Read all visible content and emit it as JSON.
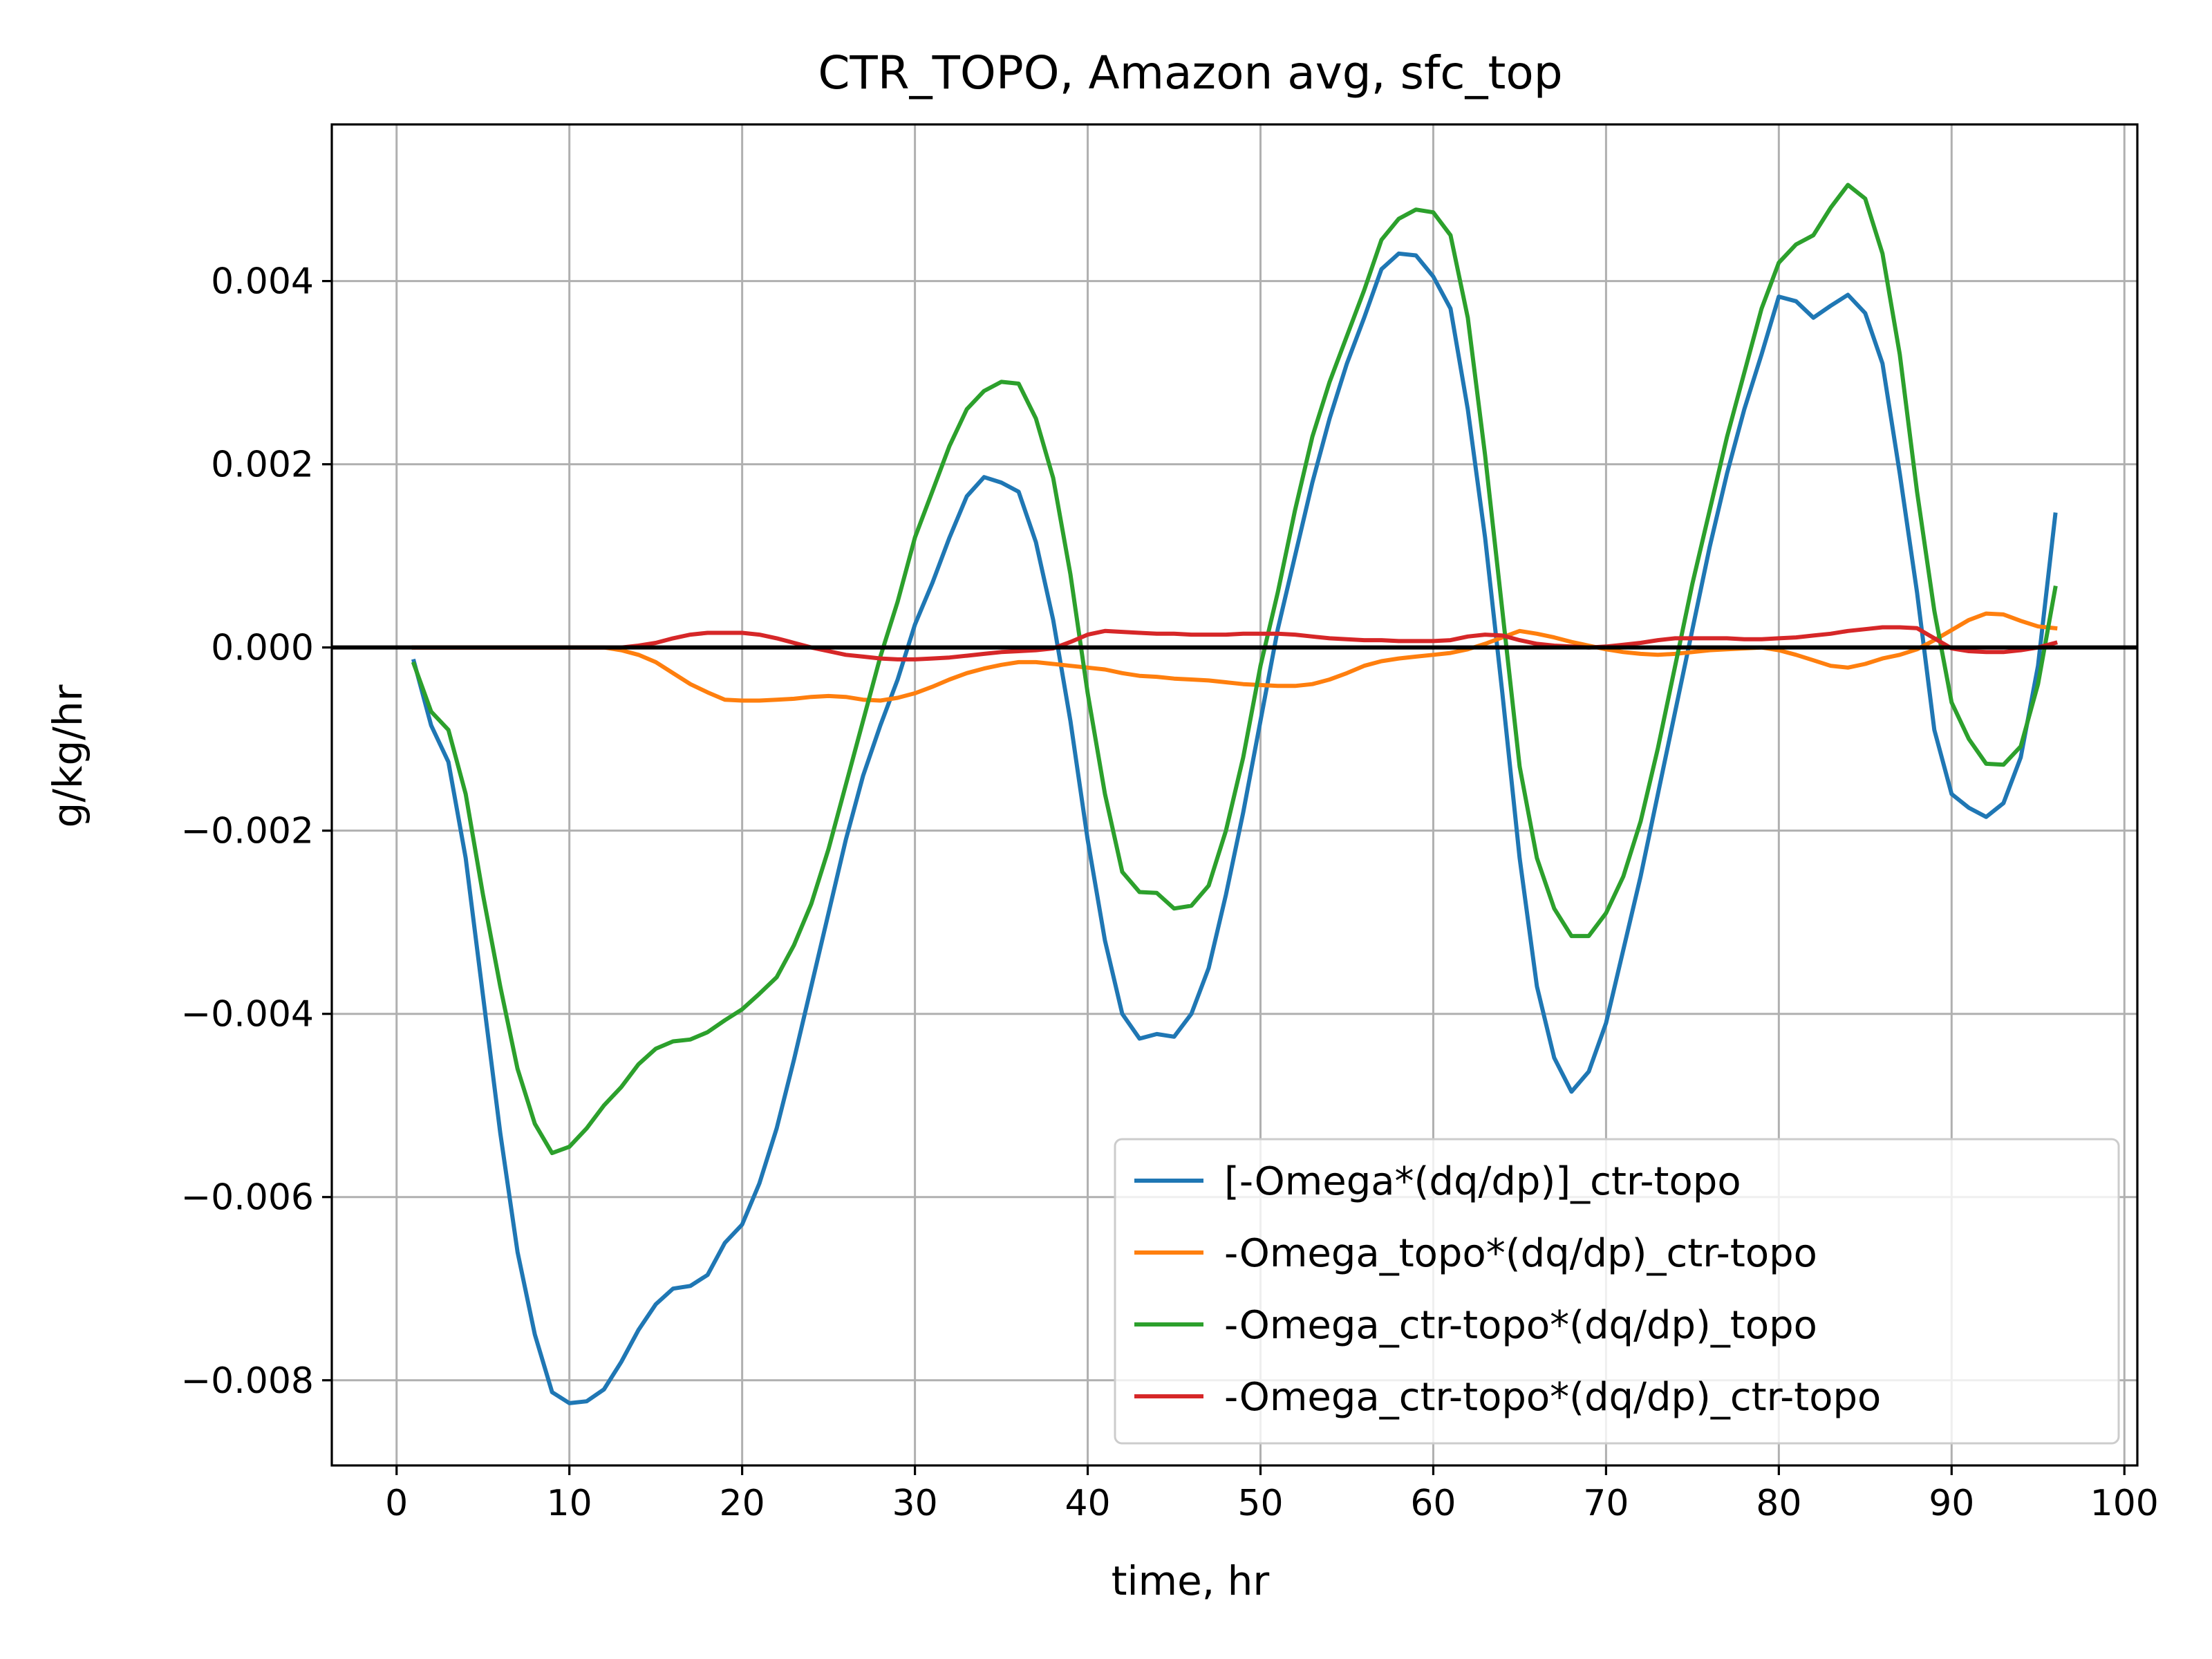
{
  "chart_data": {
    "type": "line",
    "title": "CTR_TOPO, Amazon avg, sfc_top",
    "xlabel": "time, hr",
    "ylabel": "g/kg/hr",
    "xlim": [
      -3.75,
      100.75
    ],
    "ylim": [
      -0.00893,
      0.00571
    ],
    "xticks": [
      0,
      10,
      20,
      30,
      40,
      50,
      60,
      70,
      80,
      90,
      100
    ],
    "xtick_labels": [
      "0",
      "10",
      "20",
      "30",
      "40",
      "50",
      "60",
      "70",
      "80",
      "90",
      "100"
    ],
    "yticks": [
      -0.008,
      -0.006,
      -0.004,
      -0.002,
      0.0,
      0.002,
      0.004
    ],
    "ytick_labels": [
      "−0.008",
      "−0.006",
      "−0.004",
      "−0.002",
      "0.000",
      "0.002",
      "0.004"
    ],
    "grid": true,
    "legend_position": "lower-right",
    "reference_line": {
      "y": 0.0,
      "color": "#000000"
    },
    "x": [
      1,
      2,
      3,
      4,
      5,
      6,
      7,
      8,
      9,
      10,
      11,
      12,
      13,
      14,
      15,
      16,
      17,
      18,
      19,
      20,
      21,
      22,
      23,
      24,
      25,
      26,
      27,
      28,
      29,
      30,
      31,
      32,
      33,
      34,
      35,
      36,
      37,
      38,
      39,
      40,
      41,
      42,
      43,
      44,
      45,
      46,
      47,
      48,
      49,
      50,
      51,
      52,
      53,
      54,
      55,
      56,
      57,
      58,
      59,
      60,
      61,
      62,
      63,
      64,
      65,
      66,
      67,
      68,
      69,
      70,
      71,
      72,
      73,
      74,
      75,
      76,
      77,
      78,
      79,
      80,
      81,
      82,
      83,
      84,
      85,
      86,
      87,
      88,
      89,
      90,
      91,
      92,
      93,
      94,
      95,
      96
    ],
    "series": [
      {
        "name": "[-Omega*(dq/dp)]_ctr-topo",
        "color": "#1f77b4",
        "values": [
          -0.00015,
          -0.00085,
          -0.00125,
          -0.0023,
          -0.0038,
          -0.0053,
          -0.0066,
          -0.0075,
          -0.00813,
          -0.00825,
          -0.00823,
          -0.0081,
          -0.0078,
          -0.00745,
          -0.00717,
          -0.007,
          -0.00697,
          -0.00685,
          -0.0065,
          -0.0063,
          -0.00585,
          -0.00525,
          -0.0045,
          -0.0037,
          -0.0029,
          -0.0021,
          -0.0014,
          -0.00085,
          -0.00035,
          0.00025,
          0.0007,
          0.0012,
          0.00165,
          0.00186,
          0.0018,
          0.0017,
          0.00115,
          0.0003,
          -0.0008,
          -0.0021,
          -0.0032,
          -0.004,
          -0.00427,
          -0.00422,
          -0.00425,
          -0.004,
          -0.0035,
          -0.0027,
          -0.0018,
          -0.0008,
          0.0002,
          0.001,
          0.0018,
          0.0025,
          0.0031,
          0.0036,
          0.00413,
          0.0043,
          0.00428,
          0.00405,
          0.0037,
          0.0026,
          0.0012,
          -0.0005,
          -0.0023,
          -0.0037,
          -0.00448,
          -0.00485,
          -0.00463,
          -0.0041,
          -0.0033,
          -0.0025,
          -0.0016,
          -0.0007,
          0.0002,
          0.0011,
          0.0019,
          0.0026,
          0.0032,
          0.00383,
          0.00378,
          0.0036,
          0.00373,
          0.00385,
          0.00365,
          0.0031,
          0.0019,
          0.0006,
          -0.0009,
          -0.0016,
          -0.00175,
          -0.00185,
          -0.0017,
          -0.0012,
          -0.0002,
          0.00145
        ]
      },
      {
        "name": "-Omega_topo*(dq/dp)_ctr-topo",
        "color": "#ff7f0e",
        "values": [
          0.0,
          0.0,
          0.0,
          0.0,
          0.0,
          0.0,
          0.0,
          0.0,
          0.0,
          0.0,
          0.0,
          0.0,
          -3e-05,
          -8e-05,
          -0.00016,
          -0.00028,
          -0.0004,
          -0.00049,
          -0.00057,
          -0.00058,
          -0.00058,
          -0.00057,
          -0.00056,
          -0.00054,
          -0.00053,
          -0.00054,
          -0.00057,
          -0.00058,
          -0.00055,
          -0.0005,
          -0.00043,
          -0.00035,
          -0.00028,
          -0.00023,
          -0.00019,
          -0.00016,
          -0.00016,
          -0.00018,
          -0.0002,
          -0.00022,
          -0.00024,
          -0.00028,
          -0.00031,
          -0.00032,
          -0.00034,
          -0.00035,
          -0.00036,
          -0.00038,
          -0.0004,
          -0.00041,
          -0.00042,
          -0.00042,
          -0.0004,
          -0.00035,
          -0.00028,
          -0.0002,
          -0.00015,
          -0.00012,
          -0.0001,
          -8e-05,
          -6e-05,
          -2e-05,
          4e-05,
          0.00011,
          0.00018,
          0.00015,
          0.00011,
          6e-05,
          2e-05,
          -2e-05,
          -5e-05,
          -7e-05,
          -8e-05,
          -7e-05,
          -5e-05,
          -3e-05,
          -2e-05,
          -1e-05,
          0.0,
          -3e-05,
          -8e-05,
          -0.00014,
          -0.0002,
          -0.00022,
          -0.00018,
          -0.00012,
          -8e-05,
          -2e-05,
          8e-05,
          0.00019,
          0.0003,
          0.00037,
          0.00036,
          0.00029,
          0.00023,
          0.00021
        ]
      },
      {
        "name": "-Omega_ctr-topo*(dq/dp)_topo",
        "color": "#2ca02c",
        "values": [
          -0.00018,
          -0.0007,
          -0.0009,
          -0.0016,
          -0.0027,
          -0.0037,
          -0.0046,
          -0.0052,
          -0.00552,
          -0.00545,
          -0.00525,
          -0.005,
          -0.0048,
          -0.00455,
          -0.00438,
          -0.0043,
          -0.00428,
          -0.0042,
          -0.00407,
          -0.00395,
          -0.00378,
          -0.0036,
          -0.00325,
          -0.0028,
          -0.0022,
          -0.0015,
          -0.0008,
          -0.0001,
          0.0005,
          0.0012,
          0.0017,
          0.0022,
          0.0026,
          0.0028,
          0.0029,
          0.00288,
          0.0025,
          0.00185,
          0.0008,
          -0.0005,
          -0.0016,
          -0.00245,
          -0.00267,
          -0.00268,
          -0.00285,
          -0.00282,
          -0.0026,
          -0.002,
          -0.0012,
          -0.0002,
          0.0006,
          0.0015,
          0.0023,
          0.0029,
          0.0034,
          0.0039,
          0.00445,
          0.00468,
          0.00478,
          0.00475,
          0.0045,
          0.0036,
          0.0021,
          0.0004,
          -0.0013,
          -0.0023,
          -0.00285,
          -0.00315,
          -0.00315,
          -0.0029,
          -0.0025,
          -0.0019,
          -0.0011,
          -0.0002,
          0.0007,
          0.0015,
          0.0023,
          0.003,
          0.0037,
          0.0042,
          0.0044,
          0.0045,
          0.0048,
          0.00505,
          0.0049,
          0.0043,
          0.0032,
          0.0017,
          0.0004,
          -0.0006,
          -0.001,
          -0.00127,
          -0.00128,
          -0.00108,
          -0.0004,
          0.00065
        ]
      },
      {
        "name": "-Omega_ctr-topo*(dq/dp)_ctr-topo",
        "color": "#d62728",
        "values": [
          0.0,
          0.0,
          0.0,
          0.0,
          0.0,
          0.0,
          0.0,
          0.0,
          0.0,
          0.0,
          0.0,
          0.0,
          0.0,
          2e-05,
          5e-05,
          0.0001,
          0.00014,
          0.00016,
          0.00016,
          0.00016,
          0.00014,
          0.0001,
          5e-05,
          0.0,
          -4e-05,
          -8e-05,
          -0.0001,
          -0.00012,
          -0.00013,
          -0.00013,
          -0.00012,
          -0.00011,
          -9e-05,
          -7e-05,
          -5e-05,
          -4e-05,
          -3e-05,
          -1e-05,
          6e-05,
          0.00014,
          0.00018,
          0.00017,
          0.00016,
          0.00015,
          0.00015,
          0.00014,
          0.00014,
          0.00014,
          0.00015,
          0.00015,
          0.00015,
          0.00014,
          0.00012,
          0.0001,
          9e-05,
          8e-05,
          8e-05,
          7e-05,
          7e-05,
          7e-05,
          8e-05,
          0.00012,
          0.00014,
          0.00013,
          8e-05,
          4e-05,
          2e-05,
          1e-05,
          0.0,
          1e-05,
          3e-05,
          5e-05,
          8e-05,
          0.0001,
          0.0001,
          0.0001,
          0.0001,
          9e-05,
          9e-05,
          0.0001,
          0.00011,
          0.00013,
          0.00015,
          0.00018,
          0.0002,
          0.00022,
          0.00022,
          0.00021,
          0.0001,
          -1e-05,
          -4e-05,
          -5e-05,
          -5e-05,
          -3e-05,
          0.0,
          5e-05
        ]
      }
    ]
  }
}
